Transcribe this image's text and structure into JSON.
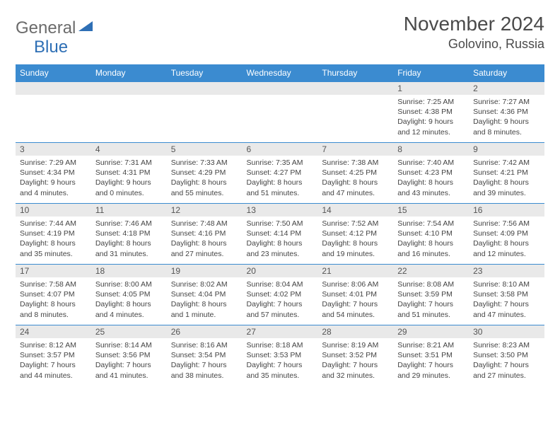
{
  "logo": {
    "gray": "General",
    "blue": "Blue"
  },
  "title": "November 2024",
  "location": "Golovino, Russia",
  "colors": {
    "header_bg": "#3b8bd0",
    "header_text": "#ffffff",
    "daynum_bg": "#e9e9e9",
    "border": "#3b8bd0",
    "logo_gray": "#6b6b6b",
    "logo_blue": "#2e6fb5"
  },
  "weekdays": [
    "Sunday",
    "Monday",
    "Tuesday",
    "Wednesday",
    "Thursday",
    "Friday",
    "Saturday"
  ],
  "weeks": [
    [
      {
        "n": "",
        "lines": [
          "",
          "",
          "",
          ""
        ]
      },
      {
        "n": "",
        "lines": [
          "",
          "",
          "",
          ""
        ]
      },
      {
        "n": "",
        "lines": [
          "",
          "",
          "",
          ""
        ]
      },
      {
        "n": "",
        "lines": [
          "",
          "",
          "",
          ""
        ]
      },
      {
        "n": "",
        "lines": [
          "",
          "",
          "",
          ""
        ]
      },
      {
        "n": "1",
        "lines": [
          "Sunrise: 7:25 AM",
          "Sunset: 4:38 PM",
          "Daylight: 9 hours",
          "and 12 minutes."
        ]
      },
      {
        "n": "2",
        "lines": [
          "Sunrise: 7:27 AM",
          "Sunset: 4:36 PM",
          "Daylight: 9 hours",
          "and 8 minutes."
        ]
      }
    ],
    [
      {
        "n": "3",
        "lines": [
          "Sunrise: 7:29 AM",
          "Sunset: 4:34 PM",
          "Daylight: 9 hours",
          "and 4 minutes."
        ]
      },
      {
        "n": "4",
        "lines": [
          "Sunrise: 7:31 AM",
          "Sunset: 4:31 PM",
          "Daylight: 9 hours",
          "and 0 minutes."
        ]
      },
      {
        "n": "5",
        "lines": [
          "Sunrise: 7:33 AM",
          "Sunset: 4:29 PM",
          "Daylight: 8 hours",
          "and 55 minutes."
        ]
      },
      {
        "n": "6",
        "lines": [
          "Sunrise: 7:35 AM",
          "Sunset: 4:27 PM",
          "Daylight: 8 hours",
          "and 51 minutes."
        ]
      },
      {
        "n": "7",
        "lines": [
          "Sunrise: 7:38 AM",
          "Sunset: 4:25 PM",
          "Daylight: 8 hours",
          "and 47 minutes."
        ]
      },
      {
        "n": "8",
        "lines": [
          "Sunrise: 7:40 AM",
          "Sunset: 4:23 PM",
          "Daylight: 8 hours",
          "and 43 minutes."
        ]
      },
      {
        "n": "9",
        "lines": [
          "Sunrise: 7:42 AM",
          "Sunset: 4:21 PM",
          "Daylight: 8 hours",
          "and 39 minutes."
        ]
      }
    ],
    [
      {
        "n": "10",
        "lines": [
          "Sunrise: 7:44 AM",
          "Sunset: 4:19 PM",
          "Daylight: 8 hours",
          "and 35 minutes."
        ]
      },
      {
        "n": "11",
        "lines": [
          "Sunrise: 7:46 AM",
          "Sunset: 4:18 PM",
          "Daylight: 8 hours",
          "and 31 minutes."
        ]
      },
      {
        "n": "12",
        "lines": [
          "Sunrise: 7:48 AM",
          "Sunset: 4:16 PM",
          "Daylight: 8 hours",
          "and 27 minutes."
        ]
      },
      {
        "n": "13",
        "lines": [
          "Sunrise: 7:50 AM",
          "Sunset: 4:14 PM",
          "Daylight: 8 hours",
          "and 23 minutes."
        ]
      },
      {
        "n": "14",
        "lines": [
          "Sunrise: 7:52 AM",
          "Sunset: 4:12 PM",
          "Daylight: 8 hours",
          "and 19 minutes."
        ]
      },
      {
        "n": "15",
        "lines": [
          "Sunrise: 7:54 AM",
          "Sunset: 4:10 PM",
          "Daylight: 8 hours",
          "and 16 minutes."
        ]
      },
      {
        "n": "16",
        "lines": [
          "Sunrise: 7:56 AM",
          "Sunset: 4:09 PM",
          "Daylight: 8 hours",
          "and 12 minutes."
        ]
      }
    ],
    [
      {
        "n": "17",
        "lines": [
          "Sunrise: 7:58 AM",
          "Sunset: 4:07 PM",
          "Daylight: 8 hours",
          "and 8 minutes."
        ]
      },
      {
        "n": "18",
        "lines": [
          "Sunrise: 8:00 AM",
          "Sunset: 4:05 PM",
          "Daylight: 8 hours",
          "and 4 minutes."
        ]
      },
      {
        "n": "19",
        "lines": [
          "Sunrise: 8:02 AM",
          "Sunset: 4:04 PM",
          "Daylight: 8 hours",
          "and 1 minute."
        ]
      },
      {
        "n": "20",
        "lines": [
          "Sunrise: 8:04 AM",
          "Sunset: 4:02 PM",
          "Daylight: 7 hours",
          "and 57 minutes."
        ]
      },
      {
        "n": "21",
        "lines": [
          "Sunrise: 8:06 AM",
          "Sunset: 4:01 PM",
          "Daylight: 7 hours",
          "and 54 minutes."
        ]
      },
      {
        "n": "22",
        "lines": [
          "Sunrise: 8:08 AM",
          "Sunset: 3:59 PM",
          "Daylight: 7 hours",
          "and 51 minutes."
        ]
      },
      {
        "n": "23",
        "lines": [
          "Sunrise: 8:10 AM",
          "Sunset: 3:58 PM",
          "Daylight: 7 hours",
          "and 47 minutes."
        ]
      }
    ],
    [
      {
        "n": "24",
        "lines": [
          "Sunrise: 8:12 AM",
          "Sunset: 3:57 PM",
          "Daylight: 7 hours",
          "and 44 minutes."
        ]
      },
      {
        "n": "25",
        "lines": [
          "Sunrise: 8:14 AM",
          "Sunset: 3:56 PM",
          "Daylight: 7 hours",
          "and 41 minutes."
        ]
      },
      {
        "n": "26",
        "lines": [
          "Sunrise: 8:16 AM",
          "Sunset: 3:54 PM",
          "Daylight: 7 hours",
          "and 38 minutes."
        ]
      },
      {
        "n": "27",
        "lines": [
          "Sunrise: 8:18 AM",
          "Sunset: 3:53 PM",
          "Daylight: 7 hours",
          "and 35 minutes."
        ]
      },
      {
        "n": "28",
        "lines": [
          "Sunrise: 8:19 AM",
          "Sunset: 3:52 PM",
          "Daylight: 7 hours",
          "and 32 minutes."
        ]
      },
      {
        "n": "29",
        "lines": [
          "Sunrise: 8:21 AM",
          "Sunset: 3:51 PM",
          "Daylight: 7 hours",
          "and 29 minutes."
        ]
      },
      {
        "n": "30",
        "lines": [
          "Sunrise: 8:23 AM",
          "Sunset: 3:50 PM",
          "Daylight: 7 hours",
          "and 27 minutes."
        ]
      }
    ]
  ]
}
